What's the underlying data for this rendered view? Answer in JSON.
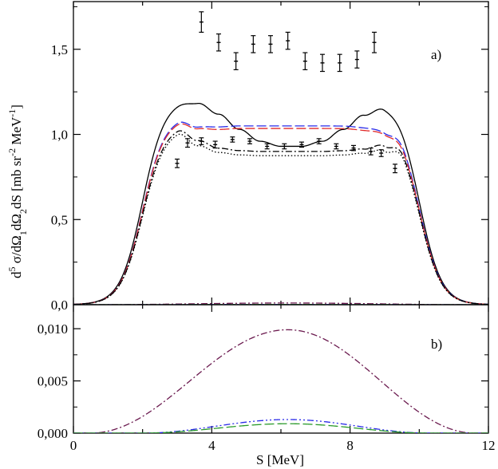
{
  "chart_data": [
    {
      "panel": "a)",
      "type": "line",
      "xlim": [
        0,
        12
      ],
      "ylim": [
        0,
        1.78
      ],
      "yticks": [
        "0,0",
        "0,5",
        "1,0",
        "1,5"
      ],
      "ytick_values": [
        0,
        0.5,
        1.0,
        1.5
      ],
      "ylabel": "d^5 σ/dΩ_1 dΩ_2 dS [mb sr^-2 MeV^-1]",
      "series": [
        {
          "color": "#000000",
          "dash": "solid",
          "shape": "full",
          "x": [
            3.0,
            3.6,
            4.2,
            4.8,
            5.4,
            6.0,
            6.6,
            7.2,
            7.8,
            8.4,
            9.0,
            9.6
          ],
          "values": [
            1.21,
            1.19,
            1.12,
            1.03,
            0.96,
            0.93,
            0.93,
            0.96,
            1.03,
            1.12,
            1.19,
            1.21
          ]
        },
        {
          "color": "#2a2ae8",
          "dash": "12,4",
          "shape": "full",
          "x": [
            3.0,
            3.6,
            4.2,
            4.8,
            5.4,
            6.0,
            6.6,
            7.2,
            7.8,
            8.4,
            9.0,
            9.6
          ],
          "values": [
            1.11,
            1.05,
            1.045,
            1.05,
            1.05,
            1.05,
            1.05,
            1.05,
            1.05,
            1.045,
            1.05,
            1.13
          ]
        },
        {
          "color": "#e02a2a",
          "dash": "12,4",
          "shape": "full",
          "x": [
            3.0,
            3.6,
            4.2,
            4.8,
            5.4,
            6.0,
            6.6,
            7.2,
            7.8,
            8.4,
            9.0,
            9.6
          ],
          "values": [
            1.1,
            1.04,
            1.03,
            1.035,
            1.035,
            1.035,
            1.035,
            1.035,
            1.035,
            1.03,
            1.04,
            1.11
          ]
        },
        {
          "color": "#000000",
          "dash": "8,3,2,3",
          "shape": "full",
          "x": [
            3.0,
            3.6,
            4.2,
            4.8,
            5.4,
            6.0,
            6.6,
            7.2,
            7.8,
            8.4,
            9.0,
            9.6
          ],
          "values": [
            1.06,
            0.97,
            0.92,
            0.905,
            0.9,
            0.9,
            0.9,
            0.9,
            0.905,
            0.92,
            0.97,
            1.08
          ]
        },
        {
          "color": "#000000",
          "dash": "1.5,2.5",
          "shape": "full",
          "x": [
            3.0,
            3.6,
            4.2,
            4.8,
            5.4,
            6.0,
            6.6,
            7.2,
            7.8,
            8.4,
            9.0,
            9.6
          ],
          "values": [
            1.04,
            0.94,
            0.895,
            0.88,
            0.875,
            0.875,
            0.875,
            0.875,
            0.88,
            0.895,
            0.94,
            1.06
          ]
        },
        {
          "color": "#6b1a4f",
          "dash": "8,3,2,3",
          "shape": "arch",
          "x": [
            0.5,
            6.2,
            11.6
          ],
          "values": [
            0.0,
            0.0099,
            0.0
          ]
        },
        {
          "color": "#2a2ae8",
          "dash": "8,3,2,3,2,3",
          "shape": "arch",
          "x": [
            2.0,
            6.2,
            10.3
          ],
          "values": [
            0.0,
            0.0013,
            0.0
          ]
        },
        {
          "color": "#2a9a2a",
          "dash": "12,4",
          "shape": "arch",
          "x": [
            2.0,
            6.2,
            10.3
          ],
          "values": [
            0.0,
            0.0009,
            0.0
          ]
        }
      ],
      "points": {
        "x": [
          3.0,
          3.3,
          3.7,
          4.1,
          4.6,
          5.1,
          5.6,
          6.1,
          6.6,
          7.1,
          7.6,
          8.1,
          8.6,
          8.9,
          9.3
        ],
        "y": [
          0.83,
          0.95,
          0.96,
          0.94,
          0.97,
          0.96,
          0.93,
          0.93,
          0.94,
          0.96,
          0.93,
          0.92,
          0.9,
          0.89,
          0.8
        ],
        "err": [
          0.025,
          0.025,
          0.02,
          0.02,
          0.015,
          0.015,
          0.015,
          0.015,
          0.015,
          0.015,
          0.015,
          0.015,
          0.02,
          0.02,
          0.025
        ]
      },
      "points_upper": {
        "x": [
          3.7,
          4.2,
          4.7,
          5.2,
          5.7,
          6.2,
          6.7,
          7.2,
          7.7,
          8.2,
          8.7
        ],
        "y": [
          1.66,
          1.54,
          1.43,
          1.53,
          1.53,
          1.55,
          1.43,
          1.42,
          1.42,
          1.44,
          1.54
        ],
        "err": [
          0.06,
          0.05,
          0.05,
          0.05,
          0.05,
          0.05,
          0.05,
          0.05,
          0.05,
          0.05,
          0.06
        ]
      }
    },
    {
      "panel": "b)",
      "type": "line",
      "xlim": [
        0,
        12
      ],
      "ylim": [
        0,
        0.0123
      ],
      "yticks": [
        "0,000",
        "0,005",
        "0,010"
      ],
      "ytick_values": [
        0,
        0.005,
        0.01
      ],
      "xticks": [
        "0",
        "4",
        "8",
        "12"
      ],
      "xtick_values": [
        0,
        4,
        8,
        12
      ],
      "xlabel": "S [MeV]",
      "series": [
        {
          "color": "#6b1a4f",
          "dash": "8,3,2,3",
          "shape": "arch",
          "x": [
            0.5,
            6.2,
            11.6
          ],
          "values": [
            0.0,
            0.0099,
            0.0
          ]
        },
        {
          "color": "#2a2ae8",
          "dash": "8,3,2,3,2,3",
          "shape": "arch",
          "x": [
            2.0,
            6.2,
            10.3
          ],
          "values": [
            0.0,
            0.0013,
            0.0
          ]
        },
        {
          "color": "#2a9a2a",
          "dash": "12,4",
          "shape": "arch",
          "x": [
            2.0,
            6.2,
            10.3
          ],
          "values": [
            0.0,
            0.0009,
            0.0
          ]
        }
      ]
    }
  ]
}
